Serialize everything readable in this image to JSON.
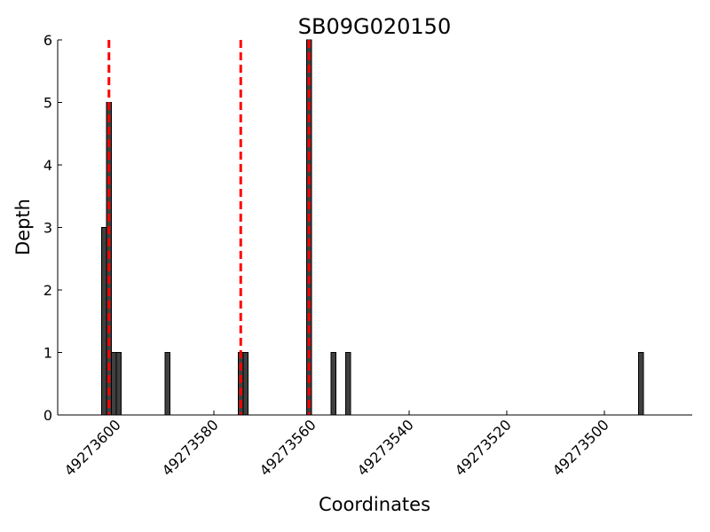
{
  "chart_data": {
    "type": "bar",
    "title": "SB09G020150",
    "x_label": "Coordinates",
    "y_label": "Depth",
    "x": [
      49273603,
      49273602,
      49273601,
      49273600,
      49273590,
      49273575,
      49273574,
      49273561,
      49273556,
      49273553,
      49273493
    ],
    "values": [
      3,
      5,
      1,
      1,
      1,
      1,
      1,
      6,
      1,
      1,
      1
    ],
    "color": "#404040",
    "xlim": [
      49273612,
      49273482
    ],
    "xticks": [
      49273600,
      49273580,
      49273560,
      49273540,
      49273520,
      49273500
    ],
    "ylim": [
      0,
      6
    ],
    "yticks": [
      0,
      1,
      2,
      3,
      4,
      5,
      6
    ],
    "vlines": [
      49273601.5,
      49273574.5,
      49273560.5
    ],
    "vline_color": "#ff0000"
  }
}
